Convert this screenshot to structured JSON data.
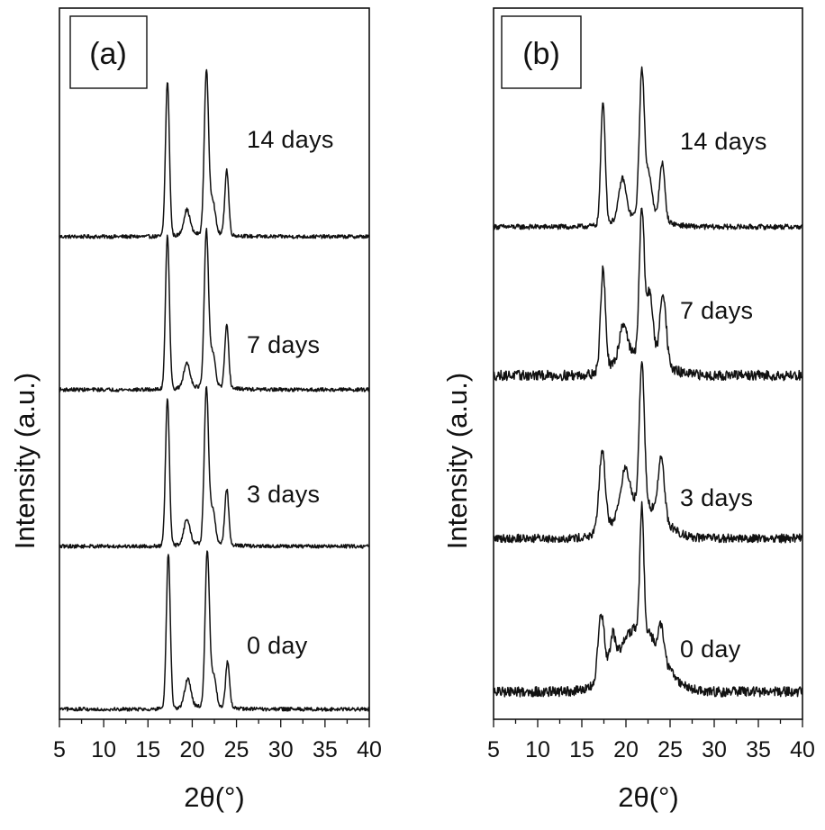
{
  "chart_data": [
    {
      "type": "line",
      "panel_label": "(a)",
      "xlabel": "2θ(°)",
      "ylabel": "Intensity (a.u.)",
      "xlim": [
        5,
        40
      ],
      "xticks": [
        5,
        10,
        15,
        20,
        25,
        30,
        35,
        40
      ],
      "tick_labels": [
        "5",
        "10",
        "15",
        "20",
        "25",
        "30",
        "35",
        "40"
      ],
      "series": [
        {
          "name": "14 days",
          "baseline": 0.03,
          "peaks": [
            [
              17.2,
              1.0,
              0.22
            ],
            [
              19.4,
              0.16,
              0.35
            ],
            [
              21.6,
              1.05,
              0.24
            ],
            [
              22.3,
              0.22,
              0.3
            ],
            [
              23.9,
              0.42,
              0.22
            ]
          ],
          "hump": 0.02,
          "noise": 0.012
        },
        {
          "name": "7 days",
          "baseline": 0.03,
          "peaks": [
            [
              17.2,
              1.0,
              0.22
            ],
            [
              19.4,
              0.16,
              0.35
            ],
            [
              21.6,
              1.0,
              0.24
            ],
            [
              22.3,
              0.22,
              0.3
            ],
            [
              23.9,
              0.4,
              0.22
            ]
          ],
          "hump": 0.02,
          "noise": 0.012
        },
        {
          "name": "3 days",
          "baseline": 0.03,
          "peaks": [
            [
              17.2,
              0.95,
              0.22
            ],
            [
              19.4,
              0.16,
              0.35
            ],
            [
              21.6,
              1.0,
              0.24
            ],
            [
              22.3,
              0.22,
              0.3
            ],
            [
              23.9,
              0.36,
              0.22
            ]
          ],
          "hump": 0.02,
          "noise": 0.012
        },
        {
          "name": "0 day",
          "baseline": 0.03,
          "peaks": [
            [
              17.3,
              1.0,
              0.22
            ],
            [
              19.5,
              0.18,
              0.35
            ],
            [
              21.7,
              1.0,
              0.24
            ],
            [
              22.4,
              0.2,
              0.3
            ],
            [
              24.0,
              0.3,
              0.22
            ]
          ],
          "hump": 0.02,
          "noise": 0.012
        }
      ]
    },
    {
      "type": "line",
      "panel_label": "(b)",
      "xlabel": "2θ(°)",
      "ylabel": "Intensity (a.u.)",
      "xlim": [
        5,
        40
      ],
      "xticks": [
        5,
        10,
        15,
        20,
        25,
        30,
        35,
        40
      ],
      "tick_labels": [
        "5",
        "10",
        "15",
        "20",
        "25",
        "30",
        "35",
        "40"
      ],
      "series": [
        {
          "name": "14 days",
          "baseline": 0.05,
          "peaks": [
            [
              17.4,
              0.85,
              0.25
            ],
            [
              19.6,
              0.28,
              0.4
            ],
            [
              21.8,
              1.0,
              0.28
            ],
            [
              22.6,
              0.3,
              0.35
            ],
            [
              24.1,
              0.4,
              0.3
            ]
          ],
          "hump": 0.08,
          "noise": 0.018
        },
        {
          "name": "7 days",
          "baseline": 0.05,
          "peaks": [
            [
              17.4,
              0.7,
              0.28
            ],
            [
              19.7,
              0.25,
              0.45
            ],
            [
              21.8,
              1.0,
              0.28
            ],
            [
              22.7,
              0.45,
              0.35
            ],
            [
              24.2,
              0.5,
              0.35
            ]
          ],
          "hump": 0.15,
          "noise": 0.035
        },
        {
          "name": "3 days",
          "baseline": 0.05,
          "peaks": [
            [
              17.3,
              0.55,
              0.35
            ],
            [
              19.9,
              0.28,
              0.5
            ],
            [
              21.8,
              1.0,
              0.28
            ],
            [
              24.0,
              0.42,
              0.35
            ]
          ],
          "hump": 0.25,
          "noise": 0.03
        },
        {
          "name": "0 day",
          "baseline": 0.06,
          "peaks": [
            [
              17.2,
              0.45,
              0.35
            ],
            [
              18.5,
              0.2,
              0.3
            ],
            [
              21.8,
              0.85,
              0.22
            ],
            [
              24.0,
              0.2,
              0.3
            ]
          ],
          "hump": 0.45,
          "noise": 0.035
        }
      ]
    }
  ]
}
